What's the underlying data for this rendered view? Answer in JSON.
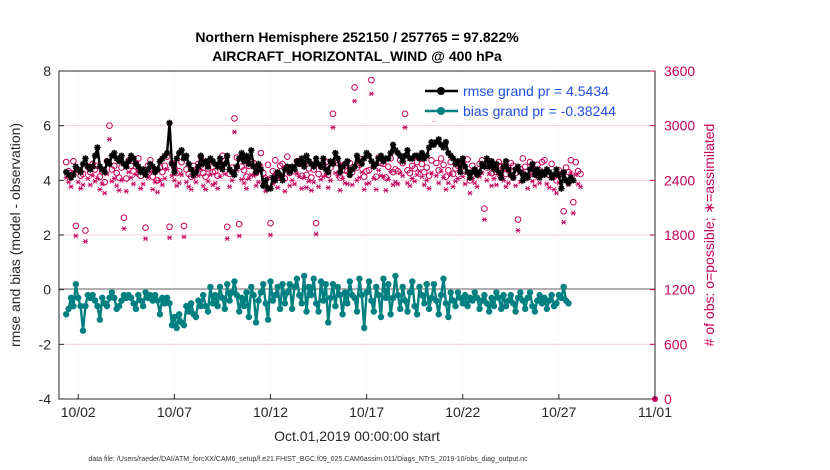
{
  "chart_data": {
    "type": "line",
    "title_line1": "Northern Hemisphere 252150 / 257765 = 97.822%",
    "title_line2": "AIRCRAFT_HORIZONTAL_WIND @ 400 hPa",
    "xlabel": "Oct.01,2019 00:00:00 start",
    "ylabel": "rmse and bias (model - observation)",
    "ylabel_right": "# of obs: o=possible; ∗=assimilated",
    "footnote": "data file: /Users/raeder/DAI/ATM_forcXX/CAM6_setup/f.e21.FHIST_BGC.f09_025.CAM6assim.011/Diags_NTrS_2019-10/obs_diag_output.nc",
    "x_range_days": [
      0,
      31
    ],
    "ylim": [
      -4,
      8
    ],
    "ylim_right": [
      0,
      3600
    ],
    "x_ticks": [
      {
        "day": 1,
        "label": "10/02"
      },
      {
        "day": 6,
        "label": "10/07"
      },
      {
        "day": 11,
        "label": "10/12"
      },
      {
        "day": 16,
        "label": "10/17"
      },
      {
        "day": 21,
        "label": "10/22"
      },
      {
        "day": 26,
        "label": "10/27"
      },
      {
        "day": 31,
        "label": "11/01"
      }
    ],
    "y_ticks": [
      {
        "value": 8,
        "label": "8"
      },
      {
        "value": 6,
        "label": "6"
      },
      {
        "value": 4,
        "label": "4"
      },
      {
        "value": 2,
        "label": "2"
      },
      {
        "value": 0,
        "label": "0"
      },
      {
        "value": -2,
        "label": "-2"
      },
      {
        "value": -4,
        "label": "-4"
      }
    ],
    "y_ticks_right": [
      {
        "value": 3600,
        "label": "3600"
      },
      {
        "value": 3000,
        "label": "3000"
      },
      {
        "value": 2400,
        "label": "2400"
      },
      {
        "value": 1800,
        "label": "1800"
      },
      {
        "value": 1200,
        "label": "1200"
      },
      {
        "value": 600,
        "label": "600"
      },
      {
        "value": 0,
        "label": "0"
      }
    ],
    "legend": [
      {
        "name": "rmse",
        "label": "rmse grand pr = 4.5434",
        "color": "#000000"
      },
      {
        "name": "bias",
        "label": "bias grand pr = -0.38244",
        "color": "#008080"
      }
    ],
    "colors": {
      "rmse": "#000000",
      "bias": "#008080",
      "obs": "#c6005a",
      "zero_line": "#b0b0b0"
    },
    "time_step_days": 0.125,
    "rmse_values": [
      4.3,
      4.2,
      4.1,
      4.2,
      4.5,
      4.4,
      4.3,
      4.6,
      4.8,
      4.5,
      4.4,
      4.5,
      4.9,
      5.2,
      4.5,
      4.4,
      4.3,
      4.7,
      4.6,
      4.9,
      5.0,
      4.8,
      4.7,
      4.9,
      4.6,
      4.5,
      4.7,
      4.9,
      4.8,
      4.6,
      4.5,
      4.3,
      4.4,
      4.2,
      4.4,
      4.6,
      4.5,
      4.3,
      4.4,
      4.7,
      4.8,
      4.9,
      5.0,
      6.1,
      4.6,
      4.3,
      4.8,
      5.0,
      5.1,
      4.8,
      4.9,
      4.6,
      4.4,
      4.2,
      4.3,
      4.5,
      4.9,
      4.6,
      4.7,
      4.5,
      4.8,
      4.7,
      4.6,
      4.5,
      4.8,
      4.4,
      4.6,
      4.9,
      4.4,
      4.3,
      4.2,
      4.5,
      4.8,
      5.0,
      4.7,
      4.9,
      4.6,
      5.1,
      4.5,
      4.3,
      4.6,
      4.4,
      3.8,
      4.0,
      3.7,
      3.7,
      4.1,
      4.0,
      4.3,
      4.2,
      4.0,
      4.4,
      4.5,
      4.3,
      4.5,
      4.4,
      4.7,
      4.6,
      4.8,
      4.5,
      4.9,
      4.7,
      4.6,
      4.5,
      4.8,
      4.6,
      4.5,
      4.8,
      4.4,
      4.3,
      4.7,
      4.6,
      5.0,
      4.8,
      4.3,
      4.5,
      4.6,
      4.7,
      4.2,
      4.4,
      4.5,
      4.9,
      4.7,
      4.6,
      4.8,
      5.0,
      4.9,
      4.7,
      4.5,
      4.6,
      4.8,
      4.9,
      4.7,
      4.8,
      4.8,
      5.0,
      5.3,
      5.1,
      5.0,
      4.9,
      4.7,
      4.9,
      5.1,
      4.8,
      4.8,
      4.9,
      4.9,
      4.8,
      5.0,
      4.8,
      4.9,
      5.2,
      5.4,
      5.3,
      5.4,
      5.5,
      5.3,
      5.2,
      5.4,
      5.0,
      4.9,
      4.8,
      4.6,
      4.7,
      4.3,
      4.8,
      4.5,
      4.3,
      4.1,
      4.3,
      4.4,
      4.2,
      4.3,
      4.6,
      4.5,
      4.8,
      4.5,
      4.7,
      4.4,
      4.6,
      4.3,
      4.1,
      4.5,
      4.7,
      4.4,
      4.2,
      4.1,
      4.4,
      4.5,
      4.3,
      4.0,
      4.2,
      4.1,
      4.4,
      4.6,
      4.2,
      4.4,
      4.1,
      4.3,
      4.2,
      4.4,
      4.3,
      4.1,
      4.2,
      4.4,
      4.2,
      3.7,
      4.3,
      4.0,
      3.9,
      4.1,
      4.0
    ],
    "bias_values": [
      -0.9,
      -0.7,
      -0.3,
      -0.6,
      0.2,
      -0.3,
      -0.6,
      -1.5,
      -0.6,
      -0.2,
      -0.3,
      -0.2,
      -0.4,
      -0.6,
      -1.1,
      -0.3,
      -0.5,
      -0.6,
      -0.3,
      -0.1,
      -0.3,
      -0.7,
      -0.6,
      -0.4,
      -0.2,
      -0.3,
      -0.2,
      -0.3,
      -0.5,
      -0.7,
      -0.2,
      -0.4,
      -0.6,
      -0.1,
      -0.3,
      -0.2,
      -0.4,
      -0.2,
      -0.4,
      -0.9,
      -0.3,
      -0.5,
      -0.3,
      -0.5,
      -1.3,
      -1.0,
      -1.4,
      -0.9,
      -1.2,
      -1.3,
      -0.6,
      -0.8,
      -0.5,
      -0.9,
      -1.0,
      -0.4,
      -0.6,
      -0.2,
      -0.6,
      -0.8,
      0.1,
      -0.5,
      -0.2,
      -0.6,
      0.1,
      -0.3,
      -0.7,
      0.2,
      -0.4,
      -0.1,
      0.3,
      -0.2,
      -0.8,
      -0.3,
      -0.6,
      -0.1,
      -1.0,
      0.1,
      -0.2,
      -1.2,
      -0.4,
      -0.1,
      0.2,
      -0.5,
      -1.1,
      0.3,
      -0.4,
      -0.2,
      0.1,
      -0.7,
      0.2,
      -0.5,
      -0.1,
      0.2,
      -0.7,
      0.1,
      0.4,
      -0.2,
      -0.5,
      0.5,
      -0.8,
      0.1,
      -0.2,
      0.4,
      -0.5,
      -0.8,
      0.3,
      -0.4,
      0.2,
      -1.2,
      -0.3,
      0.2,
      -0.6,
      0.1,
      -0.2,
      -0.9,
      -0.1,
      -0.5,
      0.3,
      -0.2,
      -0.3,
      -0.8,
      0.4,
      -0.2,
      -1.4,
      -0.1,
      0.3,
      -0.4,
      -0.8,
      0.1,
      -0.2,
      -1.0,
      0.4,
      -0.3,
      0.2,
      -0.9,
      -0.3,
      0.5,
      -0.2,
      -0.7,
      0.1,
      -0.4,
      -0.8,
      -0.1,
      0.3,
      -0.6,
      -0.9,
      0.1,
      -0.2,
      -0.5,
      0.2,
      -0.7,
      -0.3,
      0.2,
      -0.4,
      -0.9,
      -0.2,
      0.4,
      -0.5,
      -1.0,
      -0.1,
      -0.4,
      -0.6,
      -0.1,
      -0.3,
      -0.5,
      -0.2,
      -0.6,
      -0.3,
      -0.4,
      -0.1,
      -0.3,
      -0.7,
      -0.4,
      -0.2,
      -0.5,
      -0.8,
      -0.3,
      -0.6,
      -0.1,
      -0.3,
      -0.7,
      -0.2,
      -0.6,
      -0.4,
      -0.2,
      -0.5,
      -0.8,
      -0.3,
      -0.1,
      -0.4,
      -0.7,
      -0.3,
      -0.1,
      -0.6,
      -0.8,
      -0.4,
      -0.2,
      -0.5,
      -0.3,
      -0.7,
      -0.4,
      -0.2,
      -0.6,
      -0.5,
      -0.2,
      -0.3,
      0.1,
      -0.4,
      -0.5
    ],
    "obs_possible": [
      2600,
      2500,
      2480,
      2610,
      1900,
      2510,
      2450,
      2470,
      1850,
      2550,
      2490,
      2580,
      2520,
      2560,
      2440,
      2500,
      2380,
      2610,
      3000,
      2520,
      2560,
      2480,
      2430,
      2540,
      1990,
      2420,
      2620,
      2560,
      2500,
      2590,
      2640,
      2450,
      2500,
      1880,
      2560,
      2620,
      2440,
      2510,
      2400,
      2540,
      2490,
      2560,
      2660,
      1890,
      2590,
      2540,
      2480,
      2500,
      2600,
      1900,
      2520,
      2470,
      2440,
      2560,
      2510,
      2580,
      2660,
      2480,
      2440,
      2530,
      2600,
      2490,
      2500,
      2450,
      2580,
      2670,
      2610,
      1890,
      2470,
      2540,
      3080,
      2650,
      1920,
      2550,
      2510,
      2440,
      2560,
      2600,
      2590,
      2480,
      2520,
      2700,
      2480,
      2420,
      2570,
      1930,
      2500,
      2620,
      2460,
      2560,
      2580,
      2420,
      2660,
      2480,
      2540,
      2500,
      2610,
      2580,
      2450,
      2570,
      2460,
      2530,
      2430,
      2520,
      1930,
      2470,
      2550,
      2580,
      2600,
      2460,
      2540,
      3130,
      2620,
      2590,
      2430,
      2560,
      2510,
      2500,
      2590,
      2490,
      3420,
      2540,
      2570,
      2630,
      2440,
      2500,
      2510,
      3500,
      2560,
      2440,
      2650,
      2590,
      2580,
      2430,
      2550,
      2640,
      2490,
      2520,
      2500,
      2620,
      2590,
      3130,
      2510,
      2480,
      2560,
      2530,
      2600,
      2640,
      2580,
      2490,
      2540,
      2450,
      2620,
      3220,
      2590,
      2510,
      2640,
      2570,
      2440,
      2510,
      2600,
      2470,
      2530,
      2560,
      3300,
      2580,
      2500,
      2630,
      2400,
      2560,
      2510,
      2470,
      2580,
      2620,
      2090,
      2540,
      2610,
      2480,
      2560,
      2490,
      2600,
      2560,
      2540,
      2470,
      2510,
      2590,
      2560,
      2480,
      1970,
      2520,
      2640,
      2550,
      2450,
      2600,
      2530,
      2480,
      2570,
      2510,
      2600,
      2620,
      2500,
      2460,
      2580,
      2440,
      2400,
      2510,
      2470,
      2060,
      2540,
      2490,
      2620,
      2160,
      2600,
      2500,
      2470
    ],
    "obs_assimilated": [
      2430,
      2380,
      2330,
      2480,
      1790,
      2380,
      2310,
      2350,
      1730,
      2420,
      2350,
      2450,
      2390,
      2420,
      2300,
      2360,
      2260,
      2470,
      2850,
      2390,
      2420,
      2340,
      2290,
      2400,
      1870,
      2280,
      2490,
      2430,
      2360,
      2460,
      2510,
      2310,
      2360,
      1760,
      2430,
      2490,
      2300,
      2380,
      2270,
      2400,
      2350,
      2420,
      2520,
      1770,
      2450,
      2400,
      2340,
      2370,
      2460,
      1780,
      2380,
      2330,
      2300,
      2430,
      2380,
      2450,
      2520,
      2340,
      2300,
      2390,
      2460,
      2350,
      2370,
      2310,
      2440,
      2530,
      2470,
      1760,
      2330,
      2400,
      2930,
      2510,
      1790,
      2410,
      2370,
      2310,
      2420,
      2460,
      2450,
      2340,
      2380,
      2560,
      2340,
      2280,
      2430,
      1800,
      2360,
      2480,
      2320,
      2420,
      2440,
      2280,
      2520,
      2340,
      2400,
      2360,
      2470,
      2440,
      2310,
      2430,
      2320,
      2390,
      2290,
      2380,
      1810,
      2330,
      2410,
      2440,
      2460,
      2320,
      2400,
      2980,
      2480,
      2450,
      2290,
      2420,
      2370,
      2360,
      2450,
      2350,
      3270,
      2400,
      2430,
      2490,
      2300,
      2360,
      2370,
      3350,
      2420,
      2300,
      2510,
      2450,
      2440,
      2290,
      2410,
      2500,
      2350,
      2380,
      2360,
      2480,
      2450,
      2980,
      2370,
      2340,
      2420,
      2390,
      2460,
      2500,
      2440,
      2350,
      2400,
      2310,
      2480,
      3070,
      2450,
      2370,
      2500,
      2430,
      2300,
      2370,
      2460,
      2330,
      2390,
      2420,
      3150,
      2440,
      2360,
      2490,
      2260,
      2420,
      2370,
      2330,
      2440,
      2480,
      1970,
      2400,
      2470,
      2340,
      2420,
      2350,
      2460,
      2420,
      2400,
      2330,
      2370,
      2450,
      2420,
      2340,
      1850,
      2380,
      2500,
      2410,
      2310,
      2460,
      2390,
      2340,
      2430,
      2370,
      2460,
      2480,
      2360,
      2320,
      2440,
      2300,
      2260,
      2370,
      2330,
      1940,
      2400,
      2350,
      2480,
      2040,
      2460,
      2360,
      2330
    ]
  }
}
